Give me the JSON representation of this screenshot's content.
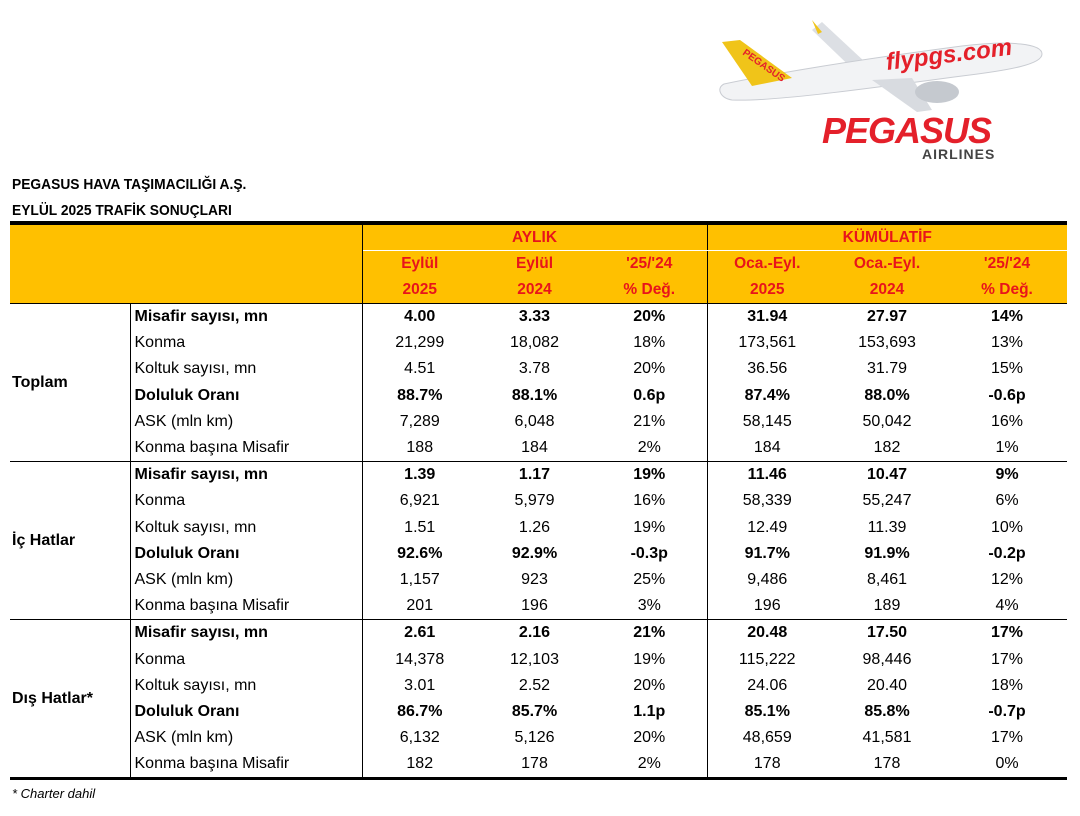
{
  "logo": {
    "livery_text": "flypgs.com",
    "tail_text": "PEGASUS",
    "brand": "PEGASUS",
    "sub": "AIRLINES"
  },
  "title1": "PEGASUS HAVA TAŞIMACILIĞI A.Ş.",
  "title2": "EYLÜL 2025 TRAFİK SONUÇLARI",
  "header": {
    "monthly": "AYLIK",
    "cumulative": "KÜMÜLATİF",
    "cols": [
      [
        "Eylül",
        "2025"
      ],
      [
        "Eylül",
        "2024"
      ],
      [
        "'25/'24",
        "% Değ."
      ],
      [
        "Oca.-Eyl.",
        "2025"
      ],
      [
        "Oca.-Eyl.",
        "2024"
      ],
      [
        "'25/'24",
        "% Değ."
      ]
    ]
  },
  "groups": [
    {
      "name": "Toplam",
      "rows": [
        {
          "label": "Misafir sayısı, mn",
          "bold": true,
          "values": [
            "4.00",
            "3.33",
            "20%",
            "31.94",
            "27.97",
            "14%"
          ]
        },
        {
          "label": "Konma",
          "values": [
            "21,299",
            "18,082",
            "18%",
            "173,561",
            "153,693",
            "13%"
          ]
        },
        {
          "label": "Koltuk sayısı, mn",
          "values": [
            "4.51",
            "3.78",
            "20%",
            "36.56",
            "31.79",
            "15%"
          ]
        },
        {
          "label": "Doluluk Oranı",
          "bold": true,
          "values": [
            "88.7%",
            "88.1%",
            "0.6p",
            "87.4%",
            "88.0%",
            "-0.6p"
          ]
        },
        {
          "label": "ASK (mln km)",
          "values": [
            "7,289",
            "6,048",
            "21%",
            "58,145",
            "50,042",
            "16%"
          ]
        },
        {
          "label": "Konma başına Misafir",
          "values": [
            "188",
            "184",
            "2%",
            "184",
            "182",
            "1%"
          ]
        }
      ]
    },
    {
      "name": "İç Hatlar",
      "rows": [
        {
          "label": "Misafir sayısı, mn",
          "bold": true,
          "values": [
            "1.39",
            "1.17",
            "19%",
            "11.46",
            "10.47",
            "9%"
          ]
        },
        {
          "label": "Konma",
          "values": [
            "6,921",
            "5,979",
            "16%",
            "58,339",
            "55,247",
            "6%"
          ]
        },
        {
          "label": "Koltuk sayısı, mn",
          "values": [
            "1.51",
            "1.26",
            "19%",
            "12.49",
            "11.39",
            "10%"
          ]
        },
        {
          "label": "Doluluk Oranı",
          "bold": true,
          "values": [
            "92.6%",
            "92.9%",
            "-0.3p",
            "91.7%",
            "91.9%",
            "-0.2p"
          ]
        },
        {
          "label": "ASK (mln km)",
          "values": [
            "1,157",
            "923",
            "25%",
            "9,486",
            "8,461",
            "12%"
          ]
        },
        {
          "label": "Konma başına Misafir",
          "values": [
            "201",
            "196",
            "3%",
            "196",
            "189",
            "4%"
          ]
        }
      ]
    },
    {
      "name": "Dış Hatlar*",
      "rows": [
        {
          "label": "Misafir sayısı, mn",
          "bold": true,
          "values": [
            "2.61",
            "2.16",
            "21%",
            "20.48",
            "17.50",
            "17%"
          ]
        },
        {
          "label": "Konma",
          "values": [
            "14,378",
            "12,103",
            "19%",
            "115,222",
            "98,446",
            "17%"
          ]
        },
        {
          "label": "Koltuk sayısı, mn",
          "values": [
            "3.01",
            "2.52",
            "20%",
            "24.06",
            "20.40",
            "18%"
          ]
        },
        {
          "label": "Doluluk Oranı",
          "bold": true,
          "values": [
            "86.7%",
            "85.7%",
            "1.1p",
            "85.1%",
            "85.8%",
            "-0.7p"
          ]
        },
        {
          "label": "ASK (mln km)",
          "values": [
            "6,132",
            "5,126",
            "20%",
            "48,659",
            "41,581",
            "17%"
          ]
        },
        {
          "label": "Konma başına Misafir",
          "values": [
            "182",
            "178",
            "2%",
            "178",
            "178",
            "0%"
          ]
        }
      ]
    }
  ],
  "footnote": "* Charter dahil"
}
